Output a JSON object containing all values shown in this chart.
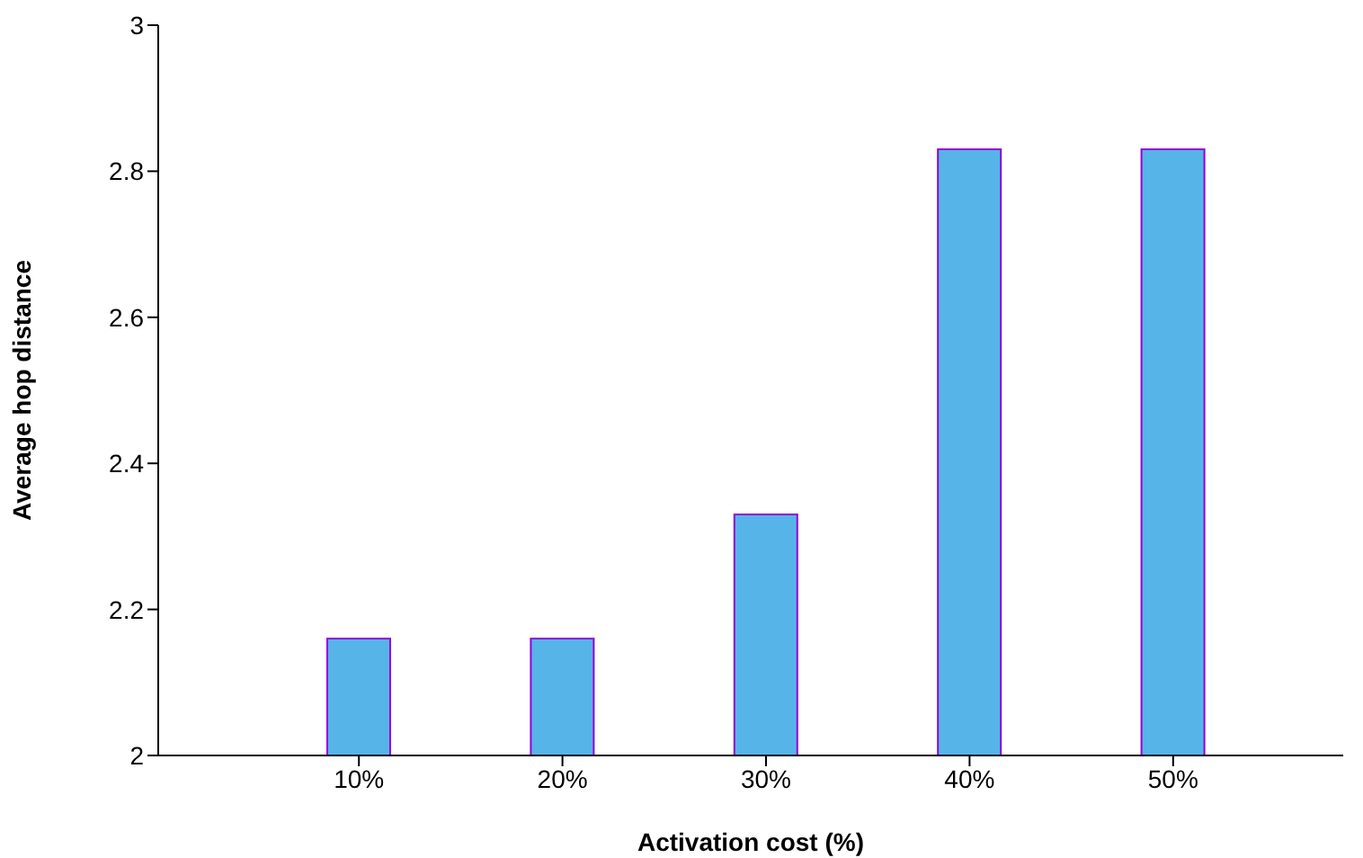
{
  "chart_data": {
    "type": "bar",
    "xlabel": "Activation cost (%)",
    "ylabel": "Average hop distance",
    "categories": [
      "10%",
      "20%",
      "30%",
      "40%",
      "50%"
    ],
    "series": [
      {
        "color": "#56b4e9",
        "values": [
          2.16,
          2.16,
          2.33,
          2.83,
          2.83
        ]
      }
    ],
    "ylim": [
      2,
      3
    ],
    "yticks": [
      2,
      2.2,
      2.4,
      2.6,
      2.8,
      3
    ],
    "grid": false,
    "legend": false
  }
}
